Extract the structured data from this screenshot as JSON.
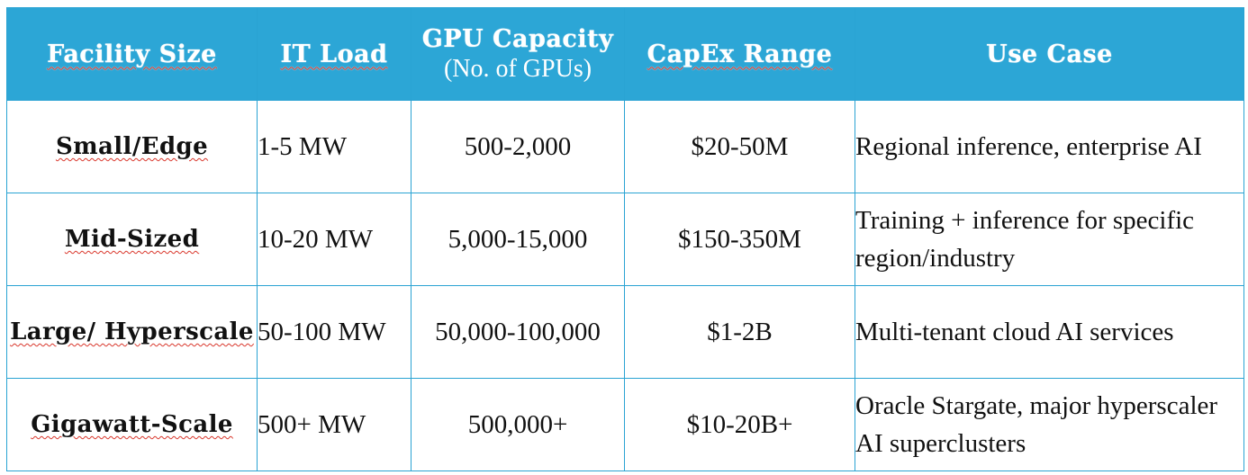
{
  "table": {
    "headers": {
      "facility_size": "Facility Size",
      "it_load": "IT Load",
      "gpu_capacity": "GPU Capacity",
      "gpu_capacity_sub": "(No. of GPUs)",
      "capex_range": "CapEx Range",
      "use_case": "Use Case"
    },
    "rows": [
      {
        "facility_size": "Small/Edge",
        "it_load": "1-5 MW",
        "gpu_capacity": "500-2,000",
        "capex_range": "$20-50M",
        "use_case": "Regional inference, enterprise AI"
      },
      {
        "facility_size": "Mid-Sized",
        "it_load": "10-20 MW",
        "gpu_capacity": "5,000-15,000",
        "capex_range": "$150-350M",
        "use_case": "Training + inference for specific region/industry"
      },
      {
        "facility_size": "Large/ Hyperscale",
        "it_load": "50-100 MW",
        "gpu_capacity": "50,000-100,000",
        "capex_range": "$1-2B",
        "use_case": "Multi-tenant cloud AI services"
      },
      {
        "facility_size": "Gigawatt-Scale",
        "it_load": "500+ MW",
        "gpu_capacity": "500,000+",
        "capex_range": "$10-20B+",
        "use_case": "Oracle Stargate, major hyperscaler AI superclusters"
      }
    ]
  },
  "colors": {
    "header_background": "#2ca6d6",
    "header_text": "#ffffff",
    "border": "#2aa3d3",
    "body_text": "#111111",
    "spellcheck_underline": "#d9362b"
  }
}
